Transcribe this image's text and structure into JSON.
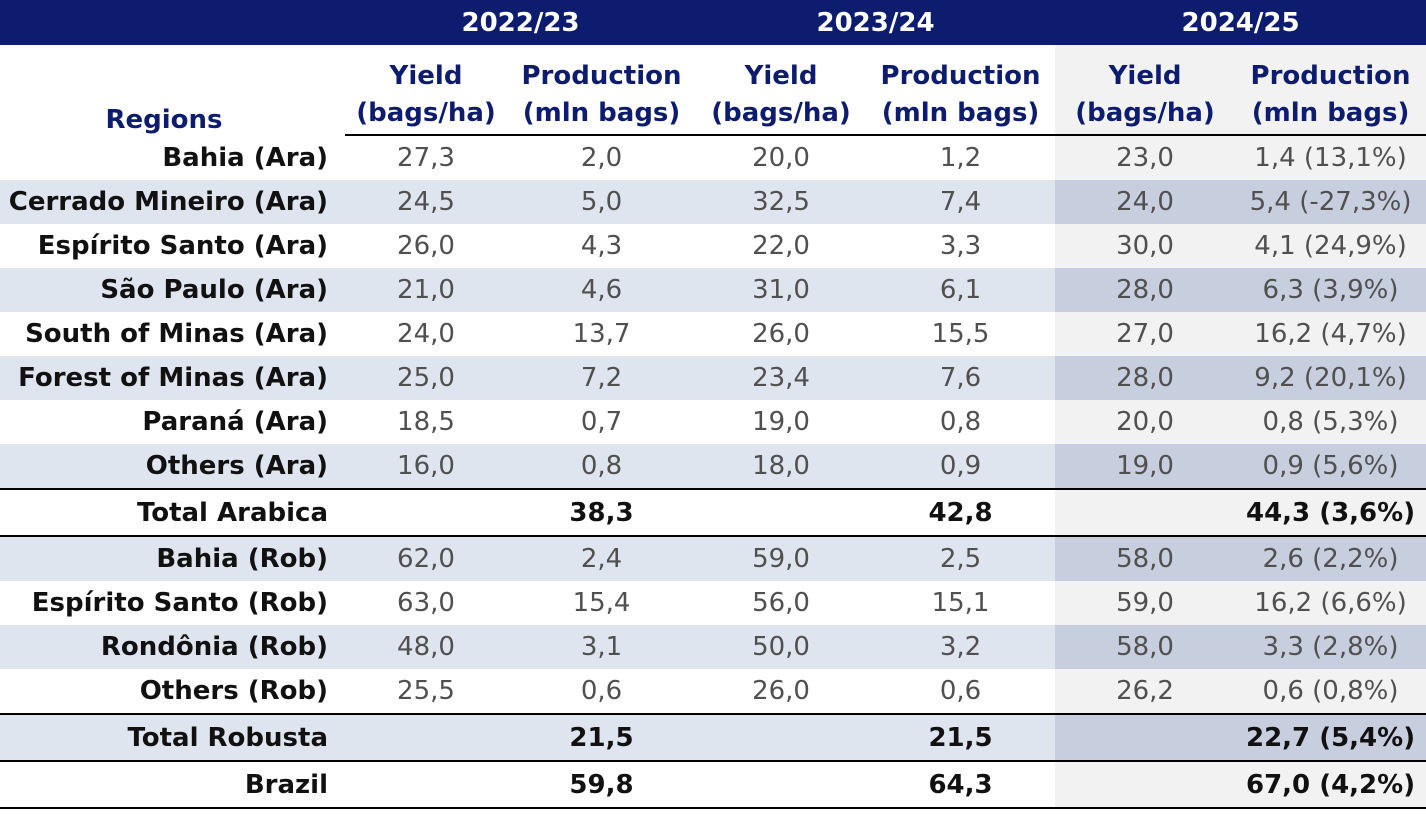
{
  "years": [
    "2022/23",
    "2023/24",
    "2024/25"
  ],
  "header": {
    "regions": "Regions",
    "yield_line1": "Yield",
    "yield_line2": "(bags/ha)",
    "production_line1": "Production",
    "production_line2": "(mln bags)"
  },
  "arabica_rows": [
    {
      "region": "Bahia (Ara)",
      "y1": "27,3",
      "p1": "2,0",
      "y2": "20,0",
      "p2": "1,2",
      "y3": "23,0",
      "p3": "1,4 (13,1%)"
    },
    {
      "region": "Cerrado Mineiro (Ara)",
      "y1": "24,5",
      "p1": "5,0",
      "y2": "32,5",
      "p2": "7,4",
      "y3": "24,0",
      "p3": "5,4 (-27,3%)"
    },
    {
      "region": "Espírito Santo (Ara)",
      "y1": "26,0",
      "p1": "4,3",
      "y2": "22,0",
      "p2": "3,3",
      "y3": "30,0",
      "p3": "4,1 (24,9%)"
    },
    {
      "region": "São Paulo (Ara)",
      "y1": "21,0",
      "p1": "4,6",
      "y2": "31,0",
      "p2": "6,1",
      "y3": "28,0",
      "p3": "6,3 (3,9%)"
    },
    {
      "region": "South of Minas (Ara)",
      "y1": "24,0",
      "p1": "13,7",
      "y2": "26,0",
      "p2": "15,5",
      "y3": "27,0",
      "p3": "16,2 (4,7%)"
    },
    {
      "region": "Forest of Minas (Ara)",
      "y1": "25,0",
      "p1": "7,2",
      "y2": "23,4",
      "p2": "7,6",
      "y3": "28,0",
      "p3": "9,2 (20,1%)"
    },
    {
      "region": "Paraná (Ara)",
      "y1": "18,5",
      "p1": "0,7",
      "y2": "19,0",
      "p2": "0,8",
      "y3": "20,0",
      "p3": "0,8 (5,3%)"
    },
    {
      "region": "Others (Ara)",
      "y1": "16,0",
      "p1": "0,8",
      "y2": "18,0",
      "p2": "0,9",
      "y3": "19,0",
      "p3": "0,9 (5,6%)"
    }
  ],
  "total_arabica": {
    "label": "Total Arabica",
    "p1": "38,3",
    "p2": "42,8",
    "p3": "44,3 (3,6%)"
  },
  "robusta_rows": [
    {
      "region": "Bahia (Rob)",
      "y1": "62,0",
      "p1": "2,4",
      "y2": "59,0",
      "p2": "2,5",
      "y3": "58,0",
      "p3": "2,6 (2,2%)"
    },
    {
      "region": "Espírito Santo (Rob)",
      "y1": "63,0",
      "p1": "15,4",
      "y2": "56,0",
      "p2": "15,1",
      "y3": "59,0",
      "p3": "16,2 (6,6%)"
    },
    {
      "region": "Rondônia (Rob)",
      "y1": "48,0",
      "p1": "3,1",
      "y2": "50,0",
      "p2": "3,2",
      "y3": "58,0",
      "p3": "3,3 (2,8%)"
    },
    {
      "region": "Others (Rob)",
      "y1": "25,5",
      "p1": "0,6",
      "y2": "26,0",
      "p2": "0,6",
      "y3": "26,2",
      "p3": "0,6 (0,8%)"
    }
  ],
  "total_robusta": {
    "label": "Total Robusta",
    "p1": "21,5",
    "p2": "21,5",
    "p3": "22,7 (5,4%)"
  },
  "brazil": {
    "label": "Brazil",
    "p1": "59,8",
    "p2": "64,3",
    "p3": "67,0 (4,2%)"
  }
}
